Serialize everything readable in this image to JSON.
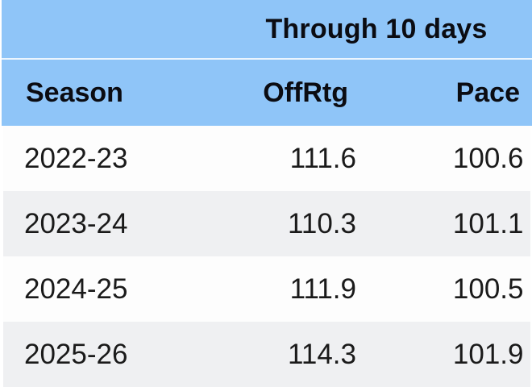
{
  "chart_data": {
    "type": "table",
    "title": "Through 10 days",
    "columns": [
      "Season",
      "OffRtg",
      "Pace"
    ],
    "rows": [
      [
        "2022-23",
        "111.6",
        "100.6"
      ],
      [
        "2023-24",
        "110.3",
        "101.1"
      ],
      [
        "2024-25",
        "111.9",
        "100.5"
      ],
      [
        "2025-26",
        "114.3",
        "101.9"
      ]
    ],
    "layout_hints": {
      "group_header_spans": [
        "OffRtg",
        "Pace"
      ],
      "season_alignment": "left",
      "numeric_alignment": "right",
      "zebra_striping": true,
      "last_row_clipped": true
    }
  },
  "colors": {
    "header_blue": "#8FC5F8",
    "row_white": "#FDFDFD",
    "row_gray": "#EFF0F2",
    "text": "#1a1a1a",
    "header_divider": "#F3F9FF"
  }
}
